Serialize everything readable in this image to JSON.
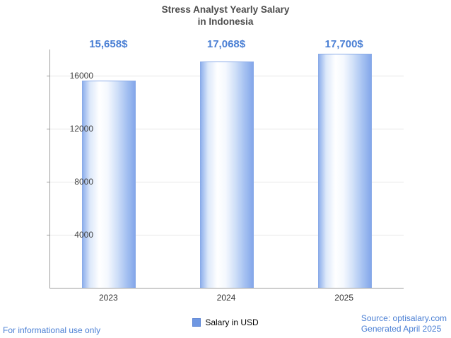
{
  "chart_data": {
    "type": "bar",
    "title": "Stress Analyst Yearly Salary in Indonesia",
    "title_line1": "Stress Analyst Yearly Salary",
    "title_line2": "in Indonesia",
    "categories": [
      "2023",
      "2024",
      "2025"
    ],
    "values": [
      15658,
      17068,
      17700
    ],
    "value_labels": [
      "15,658$",
      "17,068$",
      "17,700$"
    ],
    "series_name": "Salary in USD",
    "xlabel": "",
    "ylabel": "",
    "ylim": [
      0,
      18000
    ],
    "yticks": [
      4000,
      8000,
      12000,
      16000
    ],
    "grid": true,
    "legend_position": "bottom",
    "colors": {
      "bar_fill_main": "#84a7ea",
      "bar_fill_light": "#ffffff",
      "value_label": "#4a7fd4",
      "axis": "#9e9e9e",
      "gridline": "#e6e6e6",
      "title": "#4c4c4c"
    }
  },
  "legend": {
    "label": "Salary in USD"
  },
  "footer": {
    "disclaimer": "For informational use only",
    "source": "Source: optisalary.com",
    "generated": "Generated April 2025"
  }
}
